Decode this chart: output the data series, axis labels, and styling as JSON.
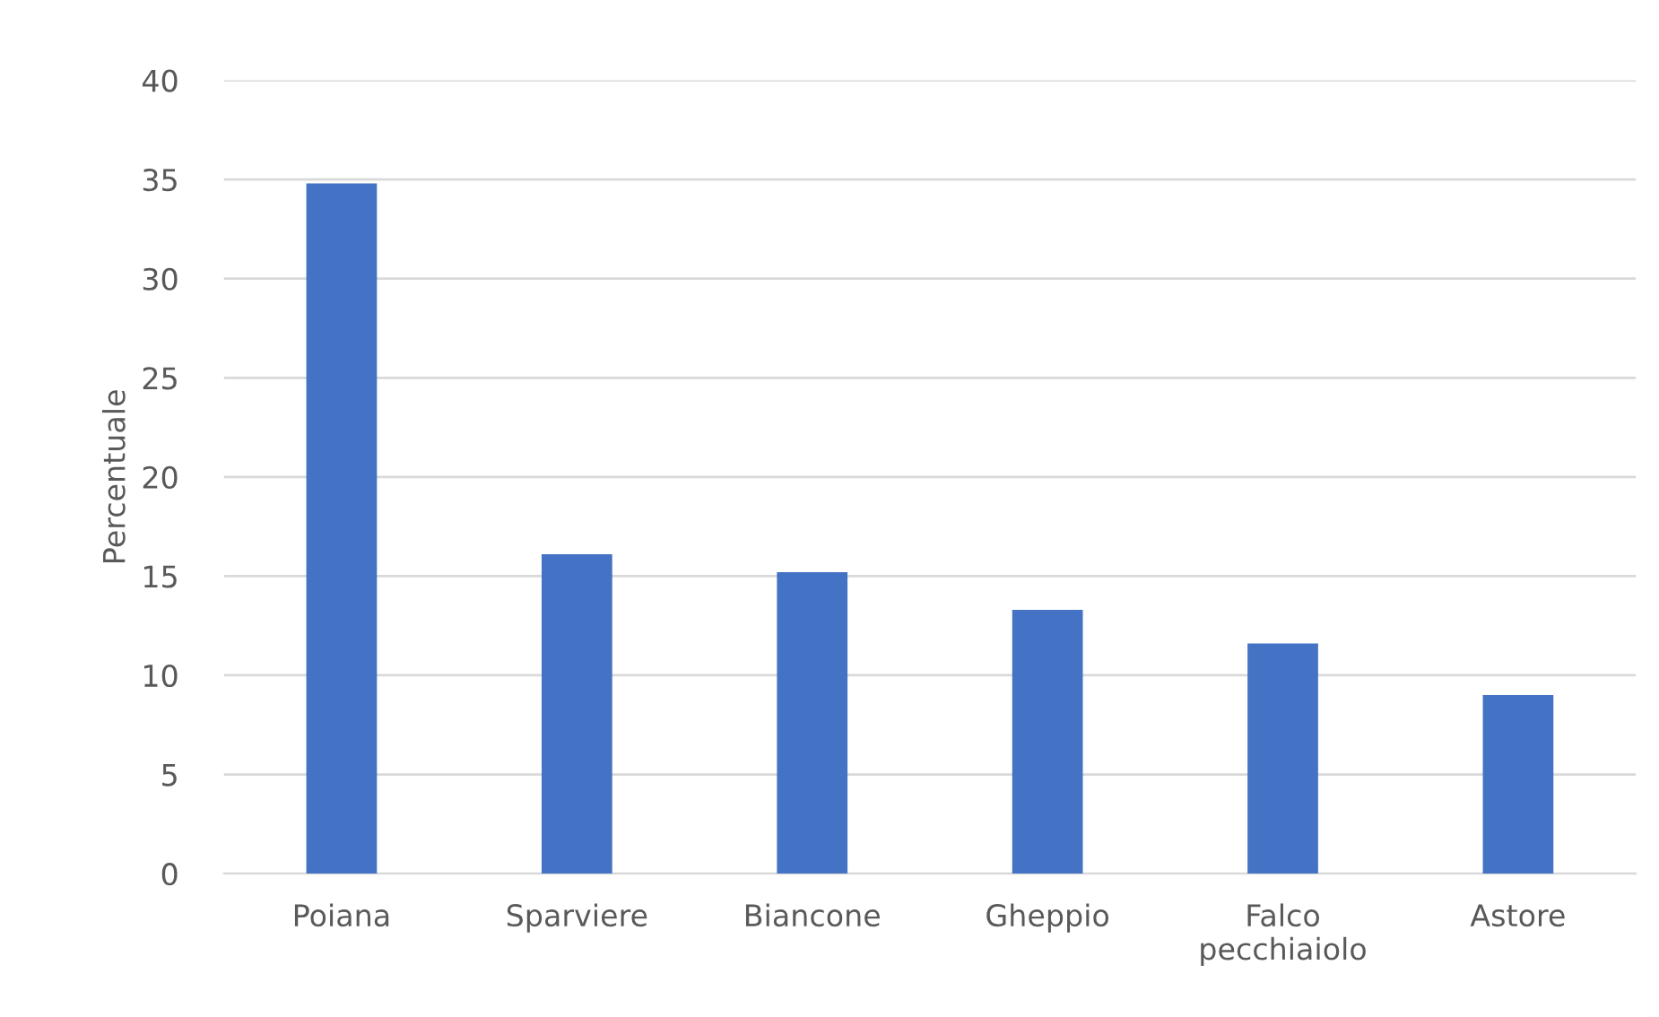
{
  "chart_data": {
    "type": "bar",
    "ylabel": "Percentuale",
    "categories": [
      "Poiana",
      "Sparviere",
      "Biancone",
      "Gheppio",
      "Falco pecchiaiolo",
      "Astore"
    ],
    "values": [
      34.8,
      16.1,
      15.2,
      13.3,
      11.6,
      9.0
    ],
    "color": "#4472c4",
    "ylim": [
      0,
      40
    ],
    "yticks": [
      0,
      5,
      10,
      15,
      20,
      25,
      30,
      35,
      40
    ],
    "grid": "y",
    "legend": false
  }
}
